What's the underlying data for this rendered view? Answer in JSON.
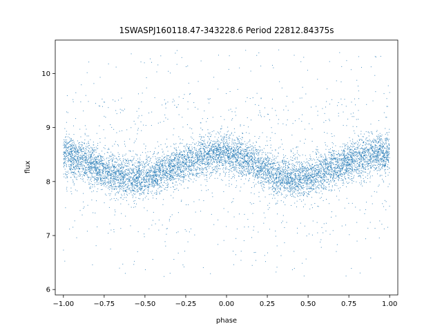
{
  "chart_data": {
    "type": "scatter",
    "title": "1SWASPJ160118.47-343228.6 Period 22812.84375s",
    "xlabel": "phase",
    "ylabel": "flux",
    "xlim": [
      -1.05,
      1.05
    ],
    "ylim": [
      5.9,
      10.62
    ],
    "grid": false,
    "marker_color": "#1f77b4",
    "x_ticks": [
      {
        "value": -1.0,
        "label": "−1.00"
      },
      {
        "value": -0.75,
        "label": "−0.75"
      },
      {
        "value": -0.5,
        "label": "−0.50"
      },
      {
        "value": -0.25,
        "label": "−0.25"
      },
      {
        "value": 0.0,
        "label": "0.00"
      },
      {
        "value": 0.25,
        "label": "0.25"
      },
      {
        "value": 0.5,
        "label": "0.50"
      },
      {
        "value": 0.75,
        "label": "0.75"
      },
      {
        "value": 1.0,
        "label": "1.00"
      }
    ],
    "y_ticks": [
      {
        "value": 6,
        "label": "6"
      },
      {
        "value": 7,
        "label": "7"
      },
      {
        "value": 8,
        "label": "8"
      },
      {
        "value": 9,
        "label": "9"
      },
      {
        "value": 10,
        "label": "10"
      }
    ],
    "series_trend": {
      "x": [
        -1.0,
        -0.9,
        -0.8,
        -0.7,
        -0.6,
        -0.5,
        -0.4,
        -0.3,
        -0.2,
        -0.1,
        0.0,
        0.1,
        0.2,
        0.3,
        0.4,
        0.5,
        0.6,
        0.7,
        0.8,
        0.9,
        1.0
      ],
      "y": [
        8.5,
        8.42,
        8.27,
        8.13,
        8.05,
        8.07,
        8.17,
        8.3,
        8.42,
        8.5,
        8.52,
        8.44,
        8.28,
        8.12,
        8.04,
        8.07,
        8.17,
        8.3,
        8.42,
        8.5,
        8.52
      ]
    },
    "scatter_core_sd": 0.18,
    "outlier_fraction": 0.1,
    "outlier_yrange": [
      6.2,
      10.45
    ],
    "point_count": 9000
  }
}
